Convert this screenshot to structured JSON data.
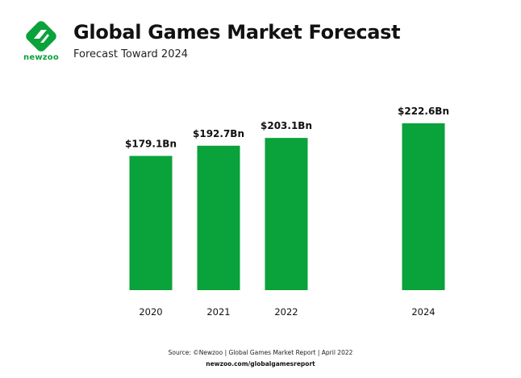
{
  "brand": {
    "name": "newzoo",
    "color": "#0aa23a",
    "icon": "newzoo-logo-icon"
  },
  "header": {
    "title": "Global Games Market Forecast",
    "subtitle": "Forecast Toward 2024"
  },
  "chart_data": {
    "type": "bar",
    "categories": [
      "2020",
      "2021",
      "2022",
      "2024"
    ],
    "values": [
      179.1,
      192.7,
      203.1,
      222.6
    ],
    "value_labels": [
      "$179.1Bn",
      "$192.7Bn",
      "$203.1Bn",
      "$222.6Bn"
    ],
    "bar_color": "#0aa23a",
    "title": "Global Games Market Forecast",
    "subtitle": "Forecast Toward 2024",
    "grid": false,
    "legend": "none"
  },
  "footer": {
    "source": "Source: ©Newzoo | Global Games Market Report | April 2022",
    "url": "newzoo.com/globalgamesreport"
  }
}
